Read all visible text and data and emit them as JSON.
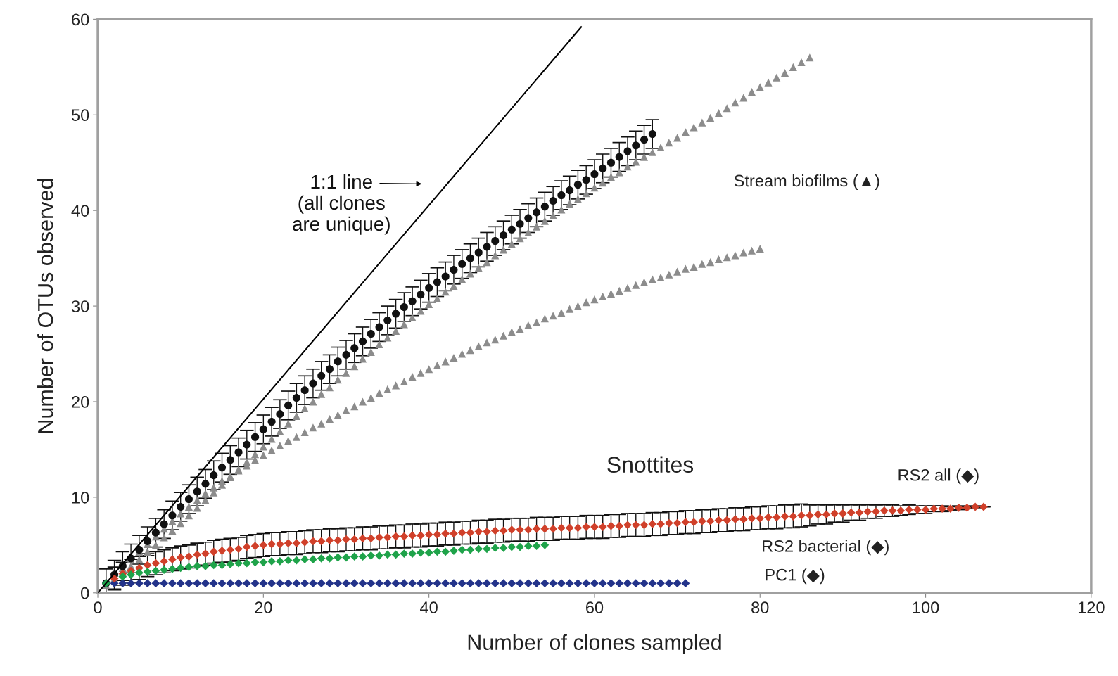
{
  "chart_data": {
    "type": "scatter",
    "xlabel": "Number of clones sampled",
    "ylabel": "Number of OTUs observed",
    "xlim": [
      0,
      120
    ],
    "ylim": [
      0,
      60
    ],
    "xticks": [
      0,
      20,
      40,
      60,
      80,
      100,
      120
    ],
    "yticks": [
      0,
      10,
      20,
      30,
      40,
      50,
      60
    ],
    "grid": false,
    "series": [
      {
        "type": "line",
        "color": "#000000",
        "marker": "none",
        "line_style": "solid",
        "x": [
          0,
          58.4
        ],
        "values": [
          0,
          59.2
        ]
      },
      {
        "color": "#8c8c8c",
        "marker": "triangle",
        "x": [
          1,
          2,
          3,
          4,
          5,
          6,
          7,
          8,
          9,
          10,
          11,
          12,
          13,
          14,
          15,
          16,
          17,
          18,
          19,
          20,
          21,
          22,
          23,
          24,
          25,
          26,
          27,
          28,
          29,
          30,
          31,
          32,
          33,
          34,
          35,
          36,
          37,
          38,
          39,
          40,
          41,
          42,
          43,
          44,
          45,
          46,
          47,
          48,
          49,
          50,
          51,
          52,
          53,
          54,
          55,
          56,
          57,
          58,
          59,
          60,
          61,
          62,
          63,
          64,
          65,
          66,
          67,
          68,
          69,
          70,
          71,
          72,
          73,
          74,
          75,
          76,
          77,
          78,
          79,
          80,
          81,
          82,
          83,
          84,
          85,
          86
        ],
        "values": [
          0.8,
          1.5,
          2.2,
          2.8,
          3.5,
          4.3,
          5.0,
          5.8,
          6.5,
          7.3,
          8.1,
          8.9,
          9.7,
          10.5,
          11.3,
          12.1,
          12.9,
          13.7,
          14.5,
          15.3,
          16.1,
          16.9,
          17.7,
          18.5,
          19.3,
          20.0,
          20.8,
          21.5,
          22.3,
          23.0,
          23.7,
          24.5,
          25.2,
          26.0,
          26.7,
          27.4,
          28.1,
          28.8,
          29.5,
          30.2,
          30.8,
          31.5,
          32.1,
          32.8,
          33.4,
          34.0,
          34.6,
          35.3,
          35.9,
          36.5,
          37.1,
          37.7,
          38.3,
          38.9,
          39.5,
          40.1,
          40.7,
          41.2,
          41.8,
          42.4,
          42.9,
          43.5,
          44.0,
          44.6,
          45.1,
          45.6,
          46.1,
          46.6,
          47.1,
          47.6,
          48.2,
          48.7,
          49.2,
          49.7,
          50.2,
          50.7,
          51.3,
          51.8,
          52.4,
          52.9,
          53.4,
          53.9,
          54.4,
          55.0,
          55.5,
          56.0
        ]
      },
      {
        "color": "#8c8c8c",
        "marker": "triangle",
        "x": [
          3,
          4,
          5,
          6,
          7,
          8,
          9,
          10,
          11,
          12,
          13,
          14,
          15,
          16,
          17,
          18,
          19,
          20,
          21,
          22,
          23,
          24,
          25,
          26,
          27,
          28,
          29,
          30,
          31,
          32,
          33,
          34,
          35,
          36,
          37,
          38,
          39,
          40,
          41,
          42,
          43,
          44,
          45,
          46,
          47,
          48,
          49,
          50,
          51,
          52,
          53,
          54,
          55,
          56,
          57,
          58,
          59,
          60,
          61,
          62,
          63,
          64,
          65,
          66,
          67,
          68,
          69,
          70,
          71,
          72,
          73,
          74,
          75,
          76,
          77,
          78,
          79,
          80
        ],
        "values": [
          2.6,
          3.5,
          4.3,
          5.1,
          5.9,
          6.7,
          7.5,
          8.3,
          9.0,
          9.7,
          10.4,
          11.0,
          11.7,
          12.2,
          12.8,
          13.3,
          13.9,
          14.4,
          14.9,
          15.4,
          15.9,
          16.3,
          16.8,
          17.3,
          17.7,
          18.2,
          18.6,
          19.1,
          19.5,
          20.0,
          20.4,
          20.9,
          21.3,
          21.7,
          22.1,
          22.6,
          23.0,
          23.4,
          23.8,
          24.2,
          24.6,
          25.0,
          25.4,
          25.8,
          26.2,
          26.5,
          26.9,
          27.3,
          27.6,
          28.0,
          28.3,
          28.7,
          29.0,
          29.3,
          29.7,
          30.0,
          30.4,
          30.7,
          31.0,
          31.3,
          31.6,
          31.9,
          32.2,
          32.5,
          32.8,
          33.0,
          33.3,
          33.6,
          33.9,
          34.1,
          34.4,
          34.6,
          34.9,
          35.1,
          35.3,
          35.6,
          35.8,
          36.0
        ]
      },
      {
        "color": "#111111",
        "marker": "circle",
        "x": [
          1,
          2,
          3,
          4,
          5,
          6,
          7,
          8,
          9,
          10,
          11,
          12,
          13,
          14,
          15,
          16,
          17,
          18,
          19,
          20,
          21,
          22,
          23,
          24,
          25,
          26,
          27,
          28,
          29,
          30,
          31,
          32,
          33,
          34,
          35,
          36,
          37,
          38,
          39,
          40,
          41,
          42,
          43,
          44,
          45,
          46,
          47,
          48,
          49,
          50,
          51,
          52,
          53,
          54,
          55,
          56,
          57,
          58,
          59,
          60,
          61,
          62,
          63,
          64,
          65,
          66,
          67
        ],
        "values": [
          1.0,
          1.9,
          2.8,
          3.6,
          4.5,
          5.4,
          6.3,
          7.2,
          8.1,
          9.0,
          9.8,
          10.6,
          11.4,
          12.3,
          13.1,
          13.9,
          14.7,
          15.5,
          16.3,
          17.1,
          17.9,
          18.7,
          19.6,
          20.4,
          21.2,
          21.9,
          22.7,
          23.4,
          24.2,
          24.9,
          25.6,
          26.3,
          27.1,
          27.8,
          28.5,
          29.2,
          29.9,
          30.5,
          31.2,
          31.9,
          32.5,
          33.1,
          33.8,
          34.4,
          35.0,
          35.6,
          36.2,
          36.8,
          37.4,
          38.0,
          38.6,
          39.2,
          39.8,
          40.4,
          41.0,
          41.6,
          42.1,
          42.7,
          43.2,
          43.8,
          44.4,
          45.0,
          45.6,
          46.2,
          46.8,
          47.4,
          48.0
        ],
        "errors": [
          1.5,
          1.5,
          1.5,
          1.5,
          1.5,
          1.5,
          1.5,
          1.5,
          1.5,
          1.5,
          1.5,
          1.5,
          1.5,
          1.5,
          1.5,
          1.5,
          1.5,
          1.5,
          1.5,
          1.5,
          1.5,
          1.5,
          1.5,
          1.5,
          1.5,
          1.5,
          1.5,
          1.5,
          1.5,
          1.5,
          1.5,
          1.5,
          1.5,
          1.5,
          1.5,
          1.5,
          1.5,
          1.5,
          1.5,
          1.5,
          1.5,
          1.5,
          1.5,
          1.5,
          1.5,
          1.5,
          1.5,
          1.5,
          1.5,
          1.5,
          1.5,
          1.5,
          1.5,
          1.5,
          1.5,
          1.5,
          1.5,
          1.5,
          1.5,
          1.5,
          1.5,
          1.5,
          1.5,
          1.5,
          1.5,
          1.5,
          1.5
        ]
      },
      {
        "color": "#23338a",
        "marker": "diamond",
        "x": [
          1,
          2,
          3,
          4,
          5,
          6,
          7,
          8,
          9,
          10,
          11,
          12,
          13,
          14,
          15,
          16,
          17,
          18,
          19,
          20,
          21,
          22,
          23,
          24,
          25,
          26,
          27,
          28,
          29,
          30,
          31,
          32,
          33,
          34,
          35,
          36,
          37,
          38,
          39,
          40,
          41,
          42,
          43,
          44,
          45,
          46,
          47,
          48,
          49,
          50,
          51,
          52,
          53,
          54,
          55,
          56,
          57,
          58,
          59,
          60,
          61,
          62,
          63,
          64,
          65,
          66,
          67,
          68,
          69,
          70,
          71
        ],
        "values": [
          1,
          1,
          1,
          1,
          1,
          1,
          1,
          1,
          1,
          1,
          1,
          1,
          1,
          1,
          1,
          1,
          1,
          1,
          1,
          1,
          1,
          1,
          1,
          1,
          1,
          1,
          1,
          1,
          1,
          1,
          1,
          1,
          1,
          1,
          1,
          1,
          1,
          1,
          1,
          1,
          1,
          1,
          1,
          1,
          1,
          1,
          1,
          1,
          1,
          1,
          1,
          1,
          1,
          1,
          1,
          1,
          1,
          1,
          1,
          1,
          1,
          1,
          1,
          1,
          1,
          1,
          1,
          1,
          1,
          1,
          1
        ]
      },
      {
        "color": "#d0402a",
        "marker": "diamond",
        "x": [
          2,
          3,
          4,
          5,
          6,
          7,
          8,
          9,
          10,
          11,
          12,
          13,
          14,
          15,
          16,
          17,
          18,
          19,
          20,
          21,
          22,
          23,
          24,
          25,
          26,
          27,
          28,
          29,
          30,
          31,
          32,
          33,
          34,
          35,
          36,
          37,
          38,
          39,
          40,
          41,
          42,
          43,
          44,
          45,
          46,
          47,
          48,
          49,
          50,
          51,
          52,
          53,
          54,
          55,
          56,
          57,
          58,
          59,
          60,
          61,
          62,
          63,
          64,
          65,
          66,
          67,
          68,
          69,
          70,
          71,
          72,
          73,
          74,
          75,
          76,
          77,
          78,
          79,
          80,
          81,
          82,
          83,
          84,
          85,
          86,
          87,
          88,
          89,
          90,
          91,
          92,
          93,
          94,
          95,
          96,
          97,
          98,
          99,
          100,
          101,
          102,
          103,
          104,
          105,
          106,
          107
        ],
        "values": [
          1.5,
          2.0,
          2.3,
          2.6,
          2.9,
          3.1,
          3.3,
          3.5,
          3.7,
          3.8,
          4.0,
          4.1,
          4.3,
          4.4,
          4.5,
          4.6,
          4.8,
          4.9,
          5.0,
          5.1,
          5.1,
          5.2,
          5.2,
          5.3,
          5.4,
          5.4,
          5.5,
          5.5,
          5.6,
          5.6,
          5.7,
          5.7,
          5.8,
          5.8,
          5.9,
          5.9,
          6.0,
          6.0,
          6.1,
          6.1,
          6.2,
          6.2,
          6.3,
          6.3,
          6.4,
          6.4,
          6.5,
          6.5,
          6.6,
          6.6,
          6.6,
          6.7,
          6.7,
          6.7,
          6.8,
          6.8,
          6.8,
          6.9,
          6.9,
          6.9,
          7.0,
          7.0,
          7.1,
          7.1,
          7.1,
          7.2,
          7.2,
          7.3,
          7.3,
          7.4,
          7.4,
          7.5,
          7.5,
          7.6,
          7.6,
          7.7,
          7.7,
          7.8,
          7.8,
          7.9,
          7.9,
          8.0,
          8.0,
          8.1,
          8.1,
          8.2,
          8.2,
          8.3,
          8.3,
          8.4,
          8.4,
          8.5,
          8.5,
          8.6,
          8.6,
          8.6,
          8.7,
          8.7,
          8.7,
          8.8,
          8.8,
          8.8,
          8.9,
          8.9,
          9.0,
          9.0
        ],
        "errors": [
          1.2,
          1.2,
          1.2,
          1.2,
          1.2,
          1.2,
          1.2,
          1.2,
          1.2,
          1.2,
          1.2,
          1.2,
          1.2,
          1.2,
          1.2,
          1.2,
          1.2,
          1.2,
          1.2,
          1.2,
          1.2,
          1.2,
          1.2,
          1.2,
          1.2,
          1.2,
          1.2,
          1.2,
          1.2,
          1.2,
          1.2,
          1.2,
          1.2,
          1.2,
          1.2,
          1.2,
          1.2,
          1.2,
          1.2,
          1.2,
          1.2,
          1.2,
          1.2,
          1.2,
          1.2,
          1.2,
          1.2,
          1.2,
          1.2,
          1.2,
          1.2,
          1.2,
          1.2,
          1.2,
          1.2,
          1.2,
          1.2,
          1.2,
          1.2,
          1.2,
          1.2,
          1.2,
          1.2,
          1.2,
          1.2,
          1.2,
          1.2,
          1.2,
          1.2,
          1.2,
          1.2,
          1.2,
          1.2,
          1.2,
          1.2,
          1.2,
          1.2,
          1.2,
          1.2,
          1.2,
          1.2,
          1.2,
          1.2,
          1.2,
          1.1,
          1.0,
          1.0,
          0.9,
          0.9,
          0.8,
          0.8,
          0.7,
          0.7,
          0.6,
          0.6,
          0.5,
          0.5,
          0.4,
          0.4,
          0.3,
          0.3,
          0.2,
          0.2,
          0.1,
          0.1,
          0
        ]
      },
      {
        "color": "#1fa34a",
        "marker": "diamond",
        "x": [
          1,
          2,
          3,
          4,
          5,
          6,
          7,
          8,
          9,
          10,
          11,
          12,
          13,
          14,
          15,
          16,
          17,
          18,
          19,
          20,
          21,
          22,
          23,
          24,
          25,
          26,
          27,
          28,
          29,
          30,
          31,
          32,
          33,
          34,
          35,
          36,
          37,
          38,
          39,
          40,
          41,
          42,
          43,
          44,
          45,
          46,
          47,
          48,
          49,
          50,
          51,
          52,
          53,
          54
        ],
        "values": [
          1.0,
          null,
          1.7,
          1.9,
          2.1,
          2.2,
          2.3,
          2.4,
          2.5,
          2.6,
          2.7,
          2.8,
          2.8,
          2.9,
          2.9,
          3.0,
          3.1,
          3.1,
          3.2,
          3.2,
          3.3,
          3.3,
          3.4,
          3.4,
          3.5,
          3.5,
          3.6,
          3.6,
          3.7,
          3.7,
          3.8,
          3.8,
          3.9,
          3.9,
          4.0,
          4.0,
          4.1,
          4.1,
          4.2,
          4.2,
          4.3,
          4.3,
          4.4,
          4.5,
          4.5,
          4.6,
          4.6,
          4.7,
          4.7,
          4.8,
          4.8,
          4.9,
          4.9,
          5.0
        ]
      }
    ],
    "annotations": [
      "1:1 line\n(all clones\nare unique)",
      "Stream biofilms (▲)",
      "Snottites",
      "RS2 all (◆)",
      "RS2 bacterial (◆)",
      "PC1 (◆)"
    ]
  }
}
